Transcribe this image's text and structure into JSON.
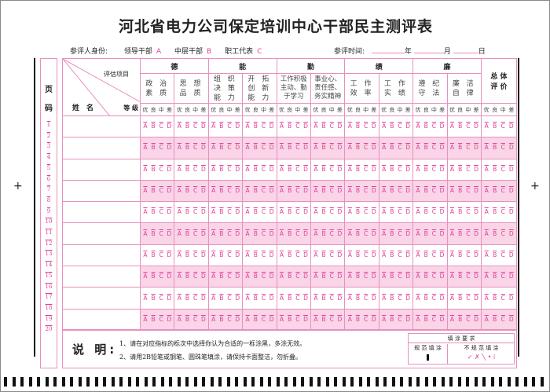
{
  "title": "河北省电力公司保定培训中心干部民主测评表",
  "identity": {
    "label": "参评人身份:",
    "options": [
      {
        "label": "领导干部",
        "code": "A"
      },
      {
        "label": "中层干部",
        "code": "B"
      },
      {
        "label": "职工代表",
        "code": "C"
      }
    ]
  },
  "date": {
    "label": "参评时间:",
    "year": "年",
    "month": "月",
    "day": "日"
  },
  "page_col": {
    "label1": "页",
    "label2": "码",
    "numbers": [
      "1",
      "2",
      "3",
      "4",
      "5",
      "6",
      "7",
      "8",
      "9",
      "10",
      "11",
      "12",
      "13",
      "14",
      "15",
      "16",
      "17",
      "18",
      "19",
      "20"
    ]
  },
  "corner": {
    "item": "评估项目",
    "name": "姓　名",
    "grade": "等 级"
  },
  "categories": [
    {
      "label": "德",
      "subs": [
        "政 治\n素 质",
        "思 想\n品 质"
      ]
    },
    {
      "label": "能",
      "subs": [
        "组 织\n决 策\n能 力",
        "开 拓\n创 新\n能 力"
      ]
    },
    {
      "label": "勤",
      "subs": [
        "工作积极\n主动、勤\n于学习",
        "事业心、\n责任感、\n务实精神"
      ]
    },
    {
      "label": "绩",
      "subs": [
        "工 作\n效 率",
        "工 作\n实 绩"
      ]
    },
    {
      "label": "廉",
      "subs": [
        "遵 纪\n守 法",
        "廉 洁\n自 律"
      ]
    }
  ],
  "overall": "总 体\n评 价",
  "grades": [
    "优",
    "良",
    "中",
    "差"
  ],
  "choices": [
    "A",
    "B",
    "C",
    "D"
  ],
  "notes": {
    "heading": "说 明:",
    "items": [
      "1、请在对应指标的栎次中选择你认为合适的一栎涂黑，多涂无效。",
      "2、请用2B铅笔或钢笔、圆珠笔填涂，请保持卡面整洁，勿折叠。"
    ]
  },
  "fill_req": {
    "title": "填 涂 要 求",
    "correct": "规 范 填 涂",
    "incorrect": "不 规 范 填 涂",
    "incorrect_marks": "✓ ✗ ╲ • ǀ"
  },
  "colors": {
    "accent": "#e0409a",
    "line": "#e890c0",
    "band": "#f9d5e7"
  }
}
